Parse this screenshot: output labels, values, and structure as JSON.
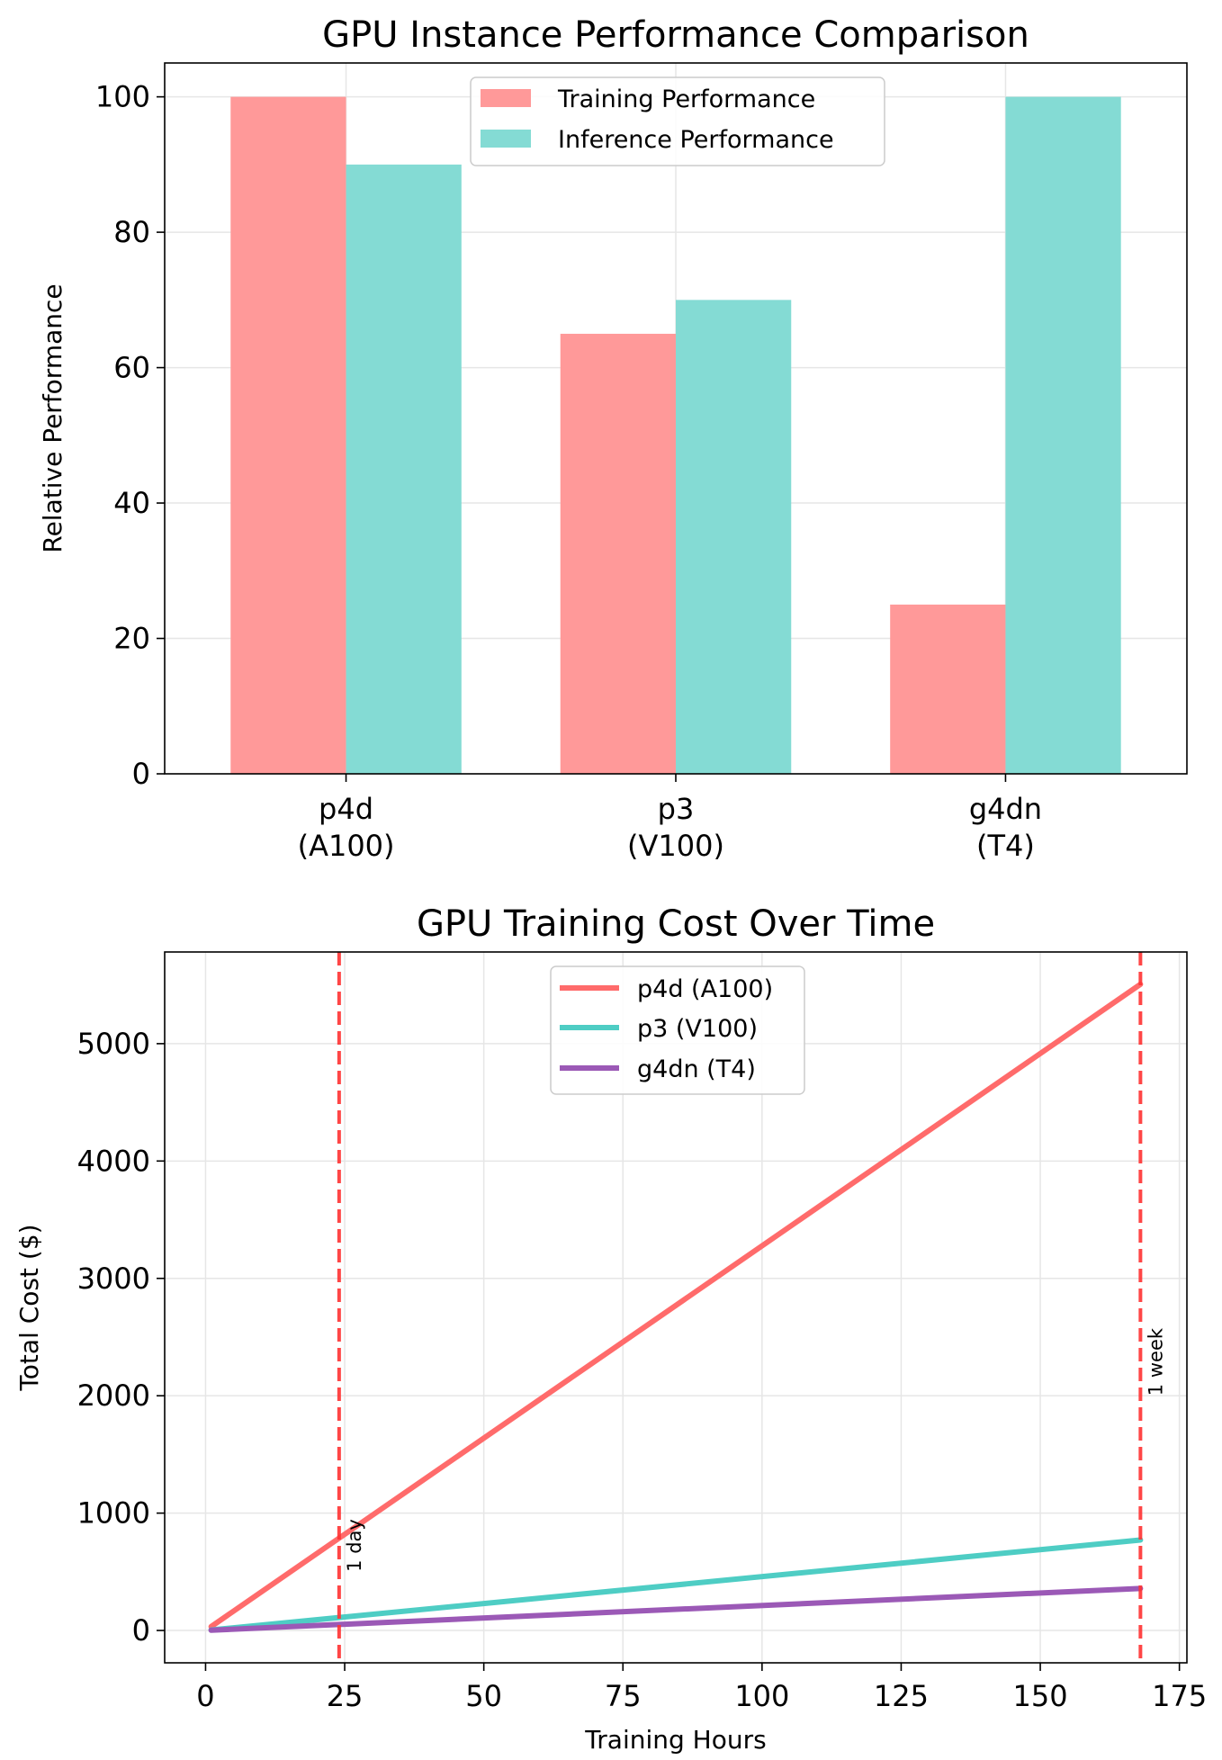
{
  "chart_data": [
    {
      "type": "bar",
      "title": "GPU Instance Performance Comparison",
      "xlabel": "",
      "ylabel": "Relative Performance",
      "categories": [
        [
          "p4d",
          "(A100)"
        ],
        [
          "p3",
          "(V100)"
        ],
        [
          "g4dn",
          "(T4)"
        ]
      ],
      "series": [
        {
          "name": "Training Performance",
          "values": [
            100,
            65,
            25
          ],
          "color": "#ff9999"
        },
        {
          "name": "Inference Performance",
          "values": [
            90,
            70,
            100
          ],
          "color": "#84dbd4"
        }
      ],
      "ylim": [
        0,
        105
      ],
      "yticks": [
        "0",
        "20",
        "40",
        "60",
        "80",
        "100"
      ],
      "grid": true,
      "legend": "top-center"
    },
    {
      "type": "line",
      "title": "GPU Training Cost Over Time",
      "xlabel": "Training Hours",
      "ylabel": "Total Cost ($)",
      "series": [
        {
          "name": "p4d (A100)",
          "x": [
            1,
            168
          ],
          "y": [
            32.77,
            5505.9
          ],
          "color": "#ff6b6b"
        },
        {
          "name": "p3 (V100)",
          "x": [
            1,
            168
          ],
          "y": [
            4.59,
            771.1
          ],
          "color": "#4ecdc4"
        },
        {
          "name": "g4dn (T4)",
          "x": [
            1,
            168
          ],
          "y": [
            2.13,
            357.9
          ],
          "color": "#9b59b6"
        }
      ],
      "xlim": [
        -7.35,
        176.35
      ],
      "ylim": [
        -275.6,
        5781.1
      ],
      "xticks": [
        "0",
        "25",
        "50",
        "75",
        "100",
        "125",
        "150",
        "175"
      ],
      "yticks": [
        "0",
        "1000",
        "2000",
        "3000",
        "4000",
        "5000"
      ],
      "vlines": [
        {
          "x": 24,
          "label": "1 day",
          "color": "#ff3333",
          "label_y": 500
        },
        {
          "x": 168,
          "label": "1 week",
          "color": "#ff3333",
          "label_y": 2000
        }
      ],
      "grid": true,
      "legend": "top-center"
    }
  ]
}
